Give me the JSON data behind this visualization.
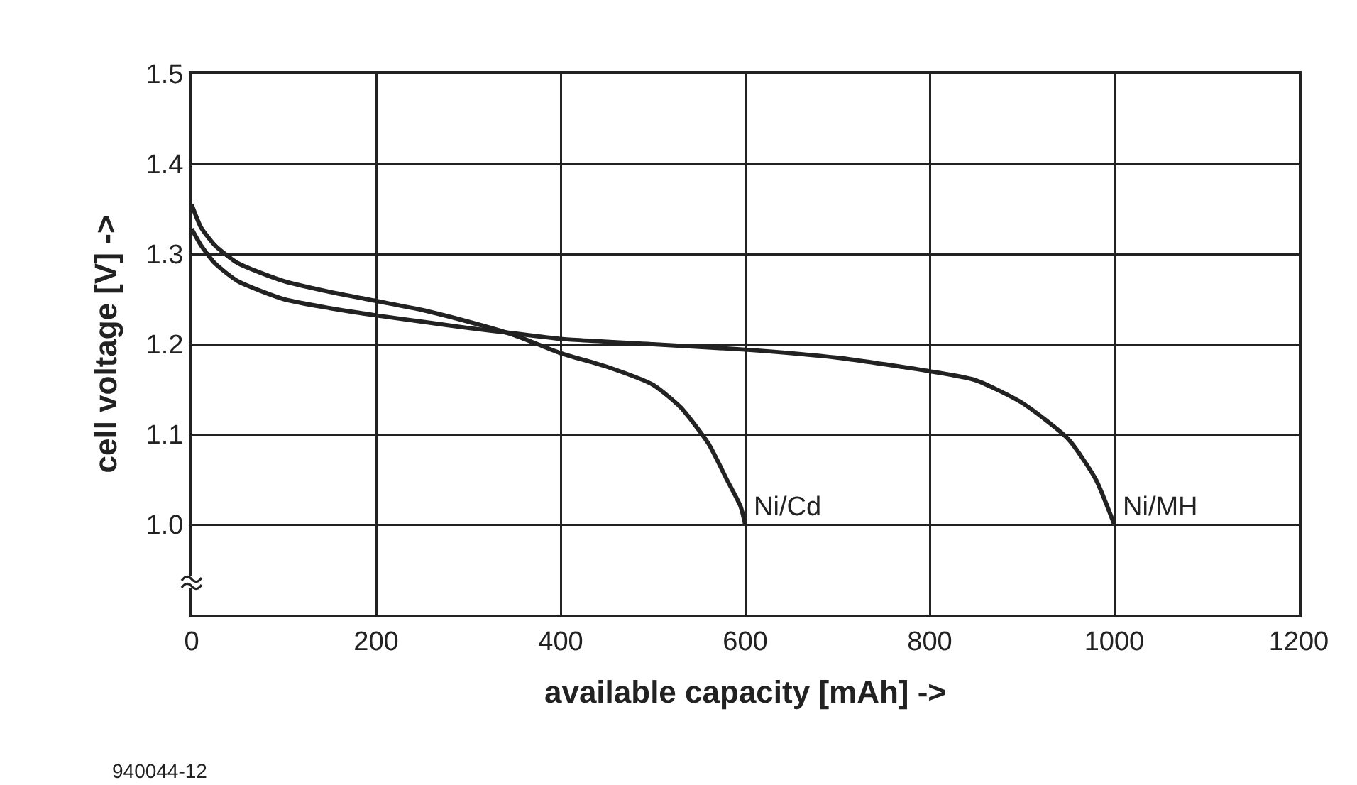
{
  "chart_data": {
    "type": "line",
    "xlabel": "available capacity [mAh] ->",
    "ylabel": "cell voltage [V] ->",
    "xlim": [
      0,
      1200
    ],
    "xticks": [
      0,
      200,
      400,
      600,
      800,
      1000,
      1200
    ],
    "ylim": [
      0.9,
      1.5
    ],
    "yticks": [
      {
        "value": 1.0,
        "label": "1.0"
      },
      {
        "value": 1.1,
        "label": "1.1"
      },
      {
        "value": 1.2,
        "label": "1.2"
      },
      {
        "value": 1.3,
        "label": "1.3"
      },
      {
        "value": 1.4,
        "label": "1.4"
      },
      {
        "value": 1.5,
        "label": "1.5"
      }
    ],
    "grid": true,
    "legend": false,
    "marker": "none",
    "line_style": "solid",
    "series": [
      {
        "name": "Ni/Cd",
        "color": "#222222",
        "x": [
          0,
          10,
          25,
          50,
          100,
          150,
          200,
          250,
          300,
          350,
          400,
          450,
          500,
          530,
          560,
          580,
          595,
          600
        ],
        "values": [
          1.355,
          1.33,
          1.31,
          1.29,
          1.27,
          1.258,
          1.248,
          1.238,
          1.225,
          1.21,
          1.19,
          1.175,
          1.155,
          1.13,
          1.09,
          1.05,
          1.02,
          1.0
        ]
      },
      {
        "name": "Ni/MH",
        "color": "#222222",
        "x": [
          0,
          10,
          25,
          50,
          100,
          150,
          200,
          250,
          300,
          350,
          400,
          500,
          600,
          700,
          800,
          850,
          900,
          950,
          980,
          1000
        ],
        "values": [
          1.328,
          1.31,
          1.29,
          1.27,
          1.25,
          1.24,
          1.232,
          1.225,
          1.218,
          1.212,
          1.206,
          1.2,
          1.194,
          1.185,
          1.17,
          1.16,
          1.135,
          1.095,
          1.05,
          1.0
        ]
      }
    ],
    "annotations": [
      "940044-12"
    ]
  }
}
